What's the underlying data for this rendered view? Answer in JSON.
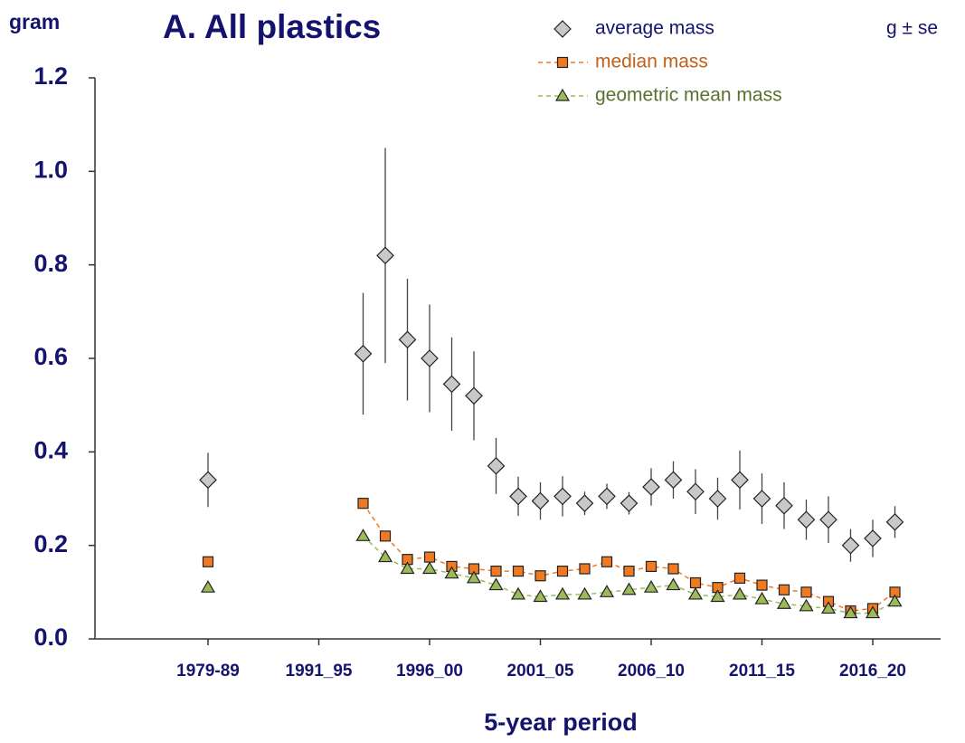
{
  "chart_data": {
    "type": "scatter",
    "title": "A. All plastics",
    "y_label": "gram",
    "x_label": "5-year period",
    "annotation": "g  ± se",
    "categories": [
      "1979-89",
      null,
      null,
      null,
      null,
      "1991_95",
      null,
      null,
      null,
      null,
      "1996_00",
      null,
      null,
      null,
      null,
      "2001_05",
      null,
      null,
      null,
      null,
      "2006_10",
      null,
      null,
      null,
      null,
      "2011_15",
      null,
      null,
      null,
      null,
      "2016_20",
      null
    ],
    "ylim": [
      0,
      1.2
    ],
    "yticks": [
      {
        "value": 0,
        "label": "0.0"
      },
      0.2,
      0.4,
      0.6,
      0.8,
      {
        "value": 1,
        "label": "1.0"
      },
      1.2
    ],
    "series": [
      {
        "name": "average mass",
        "color": "#c8c8c8",
        "marker": "diamond",
        "line": false,
        "values": [
          0.34,
          null,
          null,
          null,
          null,
          null,
          null,
          0.61,
          0.82,
          0.64,
          0.6,
          0.545,
          0.52,
          0.37,
          0.305,
          0.295,
          0.305,
          0.29,
          0.305,
          0.29,
          0.325,
          0.34,
          0.315,
          0.3,
          0.34,
          0.3,
          0.285,
          0.255,
          0.255,
          0.2,
          0.215,
          0.25
        ],
        "errors": [
          0.058,
          null,
          null,
          null,
          null,
          null,
          null,
          0.13,
          0.23,
          0.13,
          0.115,
          0.1,
          0.095,
          0.06,
          0.042,
          0.04,
          0.043,
          0.025,
          0.027,
          0.024,
          0.04,
          0.04,
          0.048,
          0.045,
          0.063,
          0.054,
          0.05,
          0.043,
          0.05,
          0.035,
          0.04,
          0.034
        ]
      },
      {
        "name": "median mass",
        "color": "#f07a22",
        "marker": "square",
        "line": true,
        "values": [
          0.165,
          null,
          null,
          null,
          null,
          null,
          null,
          0.29,
          0.22,
          0.17,
          0.175,
          0.155,
          0.15,
          0.145,
          0.145,
          0.135,
          0.145,
          0.15,
          0.165,
          0.145,
          0.155,
          0.15,
          0.12,
          0.11,
          0.13,
          0.115,
          0.105,
          0.1,
          0.08,
          0.06,
          0.065,
          0.1
        ]
      },
      {
        "name": "geometric mean mass",
        "color": "#9bbb59",
        "marker": "triangle",
        "line": true,
        "values": [
          0.11,
          null,
          null,
          null,
          null,
          null,
          null,
          0.22,
          0.175,
          0.15,
          0.15,
          0.14,
          0.13,
          0.115,
          0.095,
          0.09,
          0.095,
          0.095,
          0.1,
          0.105,
          0.11,
          0.115,
          0.095,
          0.09,
          0.095,
          0.085,
          0.075,
          0.07,
          0.065,
          0.055,
          0.055,
          0.08
        ]
      }
    ]
  }
}
